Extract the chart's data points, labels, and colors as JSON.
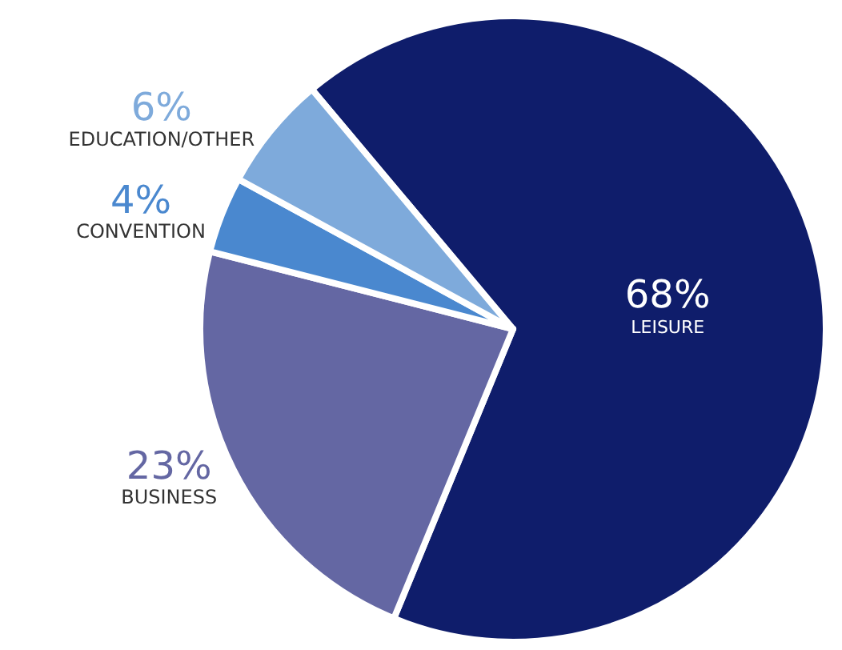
{
  "chart_data": {
    "type": "pie",
    "categories": [
      "LEISURE",
      "BUSINESS",
      "CONVENTION",
      "EDUCATION/OTHER"
    ],
    "values": [
      68,
      23,
      4,
      6
    ],
    "value_labels": [
      "68%",
      "23%",
      "4%",
      "6%"
    ],
    "colors": [
      "#0f1d6b",
      "#6467a3",
      "#4a88cf",
      "#7eaadb"
    ],
    "legend": false
  }
}
